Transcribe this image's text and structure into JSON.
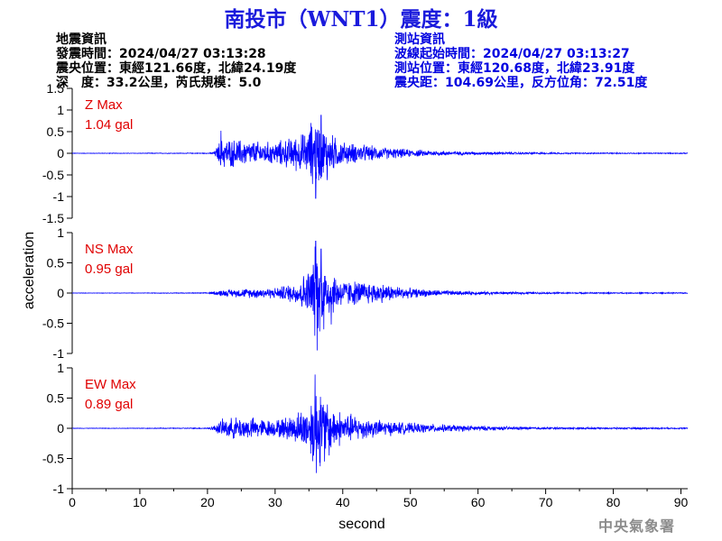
{
  "title": "南投市（WNT1）震度：1級",
  "event_info": [
    "地震資訊",
    "發震時間：2024/04/27 03:13:28",
    "震央位置：東經121.66度，北緯24.19度",
    "深　度：33.2公里，芮氏規模：5.0"
  ],
  "station_info": [
    "測站資訊",
    "波線起始時間：2024/04/27 03:13:27",
    "測站位置：東經120.68度，北緯23.91度",
    "震央距：104.69公里，反方位角：72.51度"
  ],
  "agency": "中央氣象署",
  "colors": {
    "trace": "#0000ff",
    "max_label": "#e00000",
    "title": "#1a1adc",
    "station_info": "#0000e0",
    "agency": "#8c8c8c"
  },
  "chart_data": {
    "type": "line",
    "xlabel": "second",
    "ylabel": "acceleration",
    "xlim": [
      0,
      91
    ],
    "x_ticks": [
      0,
      10,
      20,
      30,
      40,
      50,
      60,
      70,
      80,
      90
    ],
    "grid": false,
    "series": [
      {
        "name": "Z",
        "max_label": "Z Max",
        "max_value": "1.04 gal",
        "ylim": [
          -1.5,
          1.5
        ],
        "y_ticks": [
          -1.5,
          -1,
          -0.5,
          0,
          0.5,
          1,
          1.5
        ],
        "envelope": {
          "x": [
            0,
            10,
            20,
            21,
            22,
            25,
            28,
            30,
            33,
            35,
            36,
            37,
            38,
            40,
            45,
            50,
            55,
            60,
            65,
            70,
            80,
            91
          ],
          "amp": [
            0.006,
            0.008,
            0.01,
            0.04,
            0.4,
            0.35,
            0.3,
            0.3,
            0.45,
            0.6,
            1.0,
            0.7,
            0.55,
            0.3,
            0.18,
            0.1,
            0.06,
            0.04,
            0.03,
            0.02,
            0.015,
            0.012
          ]
        },
        "peaks": [
          [
            36.0,
            -1.04
          ],
          [
            36.8,
            0.88
          ],
          [
            35.3,
            0.7
          ],
          [
            22.0,
            0.52
          ],
          [
            37.7,
            -0.62
          ]
        ]
      },
      {
        "name": "NS",
        "max_label": "NS Max",
        "max_value": "0.95 gal",
        "ylim": [
          -1,
          1
        ],
        "y_ticks": [
          -1,
          -0.5,
          0,
          0.5,
          1
        ],
        "envelope": {
          "x": [
            0,
            10,
            20,
            21,
            22,
            25,
            28,
            30,
            33,
            35,
            36,
            37,
            38,
            40,
            45,
            50,
            55,
            60,
            65,
            70,
            80,
            91
          ],
          "amp": [
            0.004,
            0.005,
            0.008,
            0.03,
            0.06,
            0.08,
            0.1,
            0.1,
            0.2,
            0.45,
            0.9,
            0.6,
            0.45,
            0.25,
            0.2,
            0.09,
            0.05,
            0.03,
            0.02,
            0.015,
            0.012,
            0.01
          ]
        },
        "peaks": [
          [
            36.2,
            -0.95
          ],
          [
            36.0,
            0.86
          ],
          [
            36.8,
            0.73
          ],
          [
            37.2,
            -0.6
          ],
          [
            38.3,
            -0.52
          ]
        ]
      },
      {
        "name": "EW",
        "max_label": "EW Max",
        "max_value": "0.89 gal",
        "ylim": [
          -1,
          1
        ],
        "y_ticks": [
          -1,
          -0.5,
          0,
          0.5,
          1
        ],
        "envelope": {
          "x": [
            0,
            10,
            20,
            21,
            22,
            25,
            28,
            30,
            33,
            35,
            36,
            37,
            38,
            40,
            45,
            50,
            55,
            60,
            65,
            70,
            80,
            91
          ],
          "amp": [
            0.004,
            0.006,
            0.01,
            0.05,
            0.16,
            0.22,
            0.18,
            0.15,
            0.28,
            0.45,
            0.85,
            0.6,
            0.45,
            0.3,
            0.16,
            0.1,
            0.07,
            0.05,
            0.03,
            0.02,
            0.015,
            0.012
          ]
        },
        "peaks": [
          [
            35.9,
            0.89
          ],
          [
            36.1,
            -0.74
          ],
          [
            36.7,
            0.52
          ],
          [
            37.3,
            -0.55
          ],
          [
            38.0,
            -0.45
          ]
        ]
      }
    ]
  }
}
